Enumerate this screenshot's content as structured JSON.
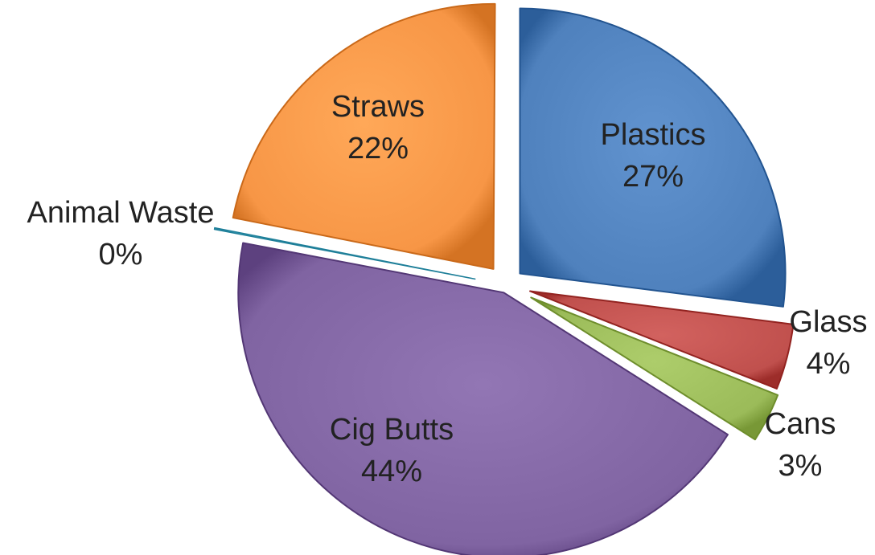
{
  "chart_data": {
    "type": "pie",
    "title": "",
    "legend": "none",
    "exploded": true,
    "slices": [
      {
        "label": "Plastics",
        "value": 27,
        "value_label": "27%",
        "color": "#4f81bd"
      },
      {
        "label": "Glass",
        "value": 4,
        "value_label": "4%",
        "color": "#c0504d"
      },
      {
        "label": "Cans",
        "value": 3,
        "value_label": "3%",
        "color": "#9bbb59"
      },
      {
        "label": "Cig Butts",
        "value": 44,
        "value_label": "44%",
        "color": "#8064a2"
      },
      {
        "label": "Animal Waste",
        "value": 0,
        "value_label": "0%",
        "color": "#4bacc6"
      },
      {
        "label": "Straws",
        "value": 22,
        "value_label": "22%",
        "color": "#f79646"
      }
    ]
  }
}
